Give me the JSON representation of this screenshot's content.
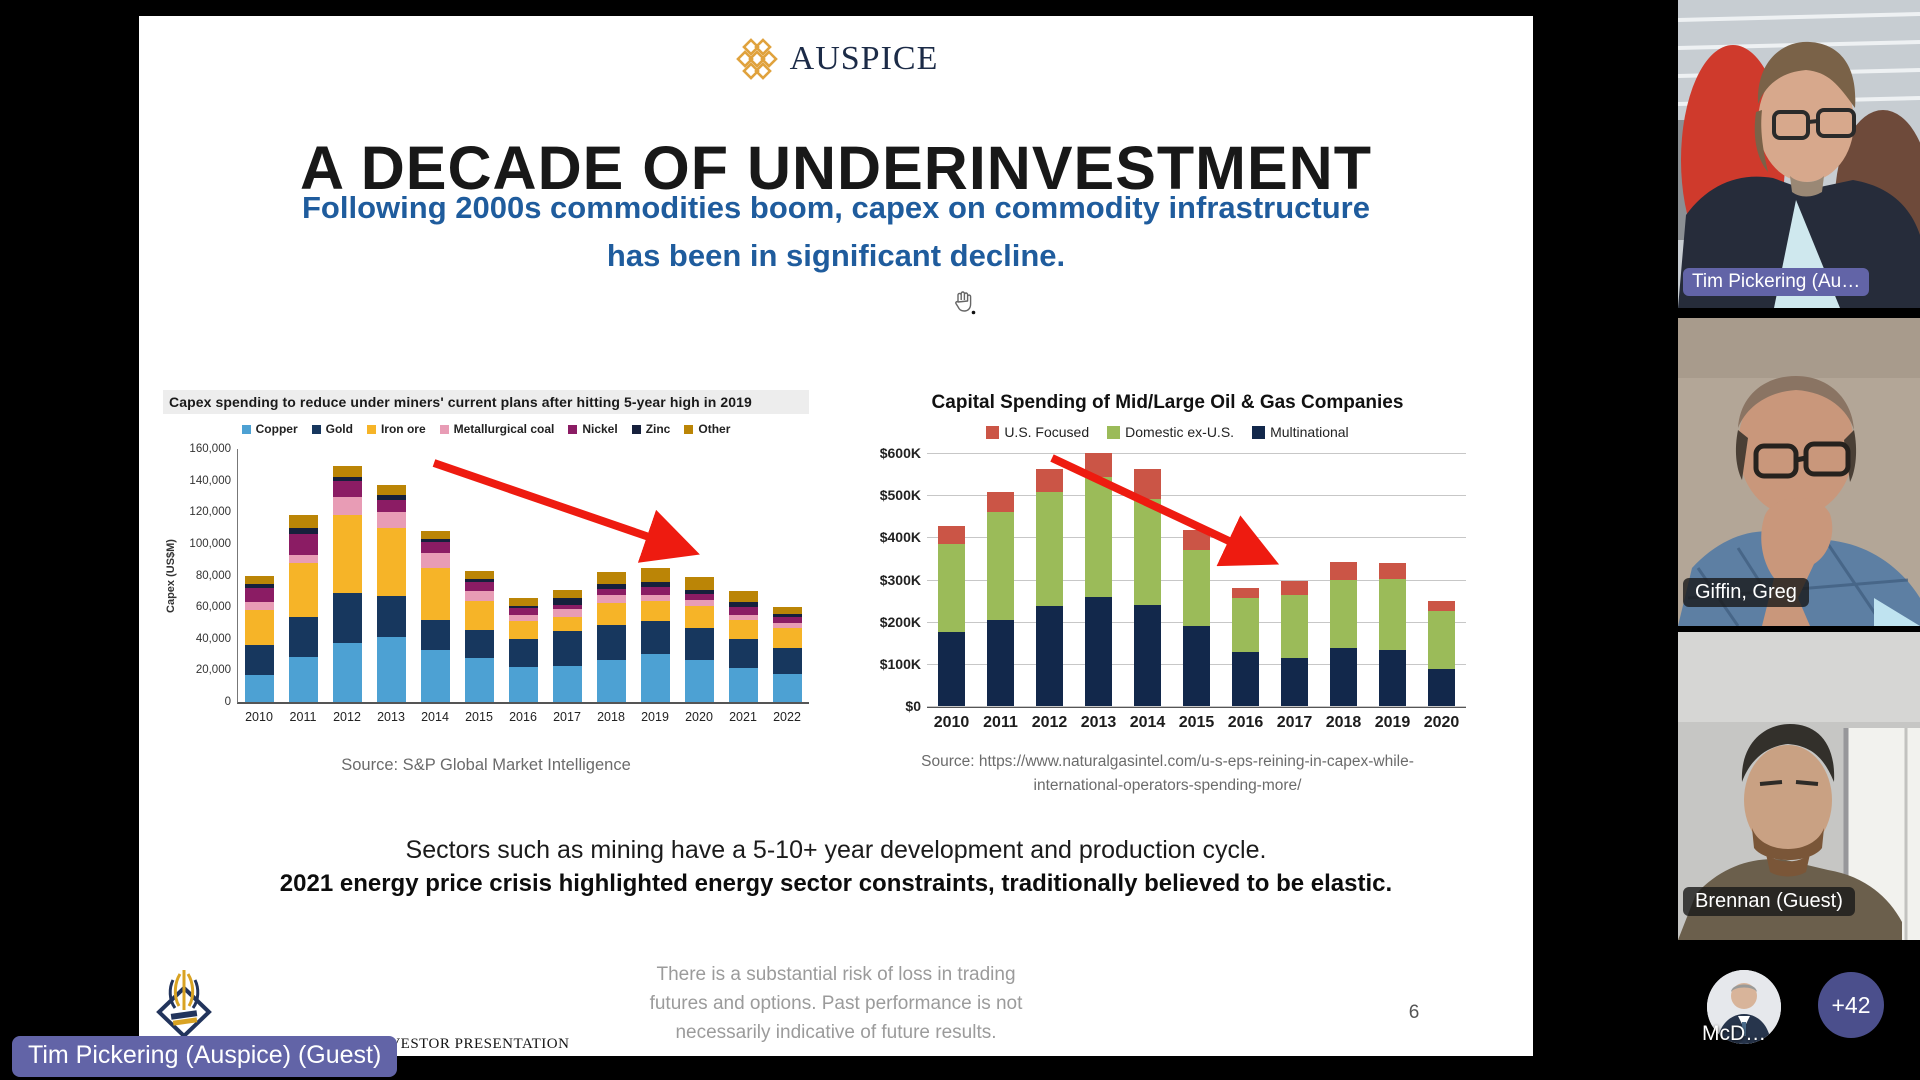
{
  "meeting": {
    "presenter_tag": "Tim Pickering (Auspice) (Guest)",
    "participants": [
      {
        "name": "Tim Pickering (Au…"
      },
      {
        "name": "Giffin, Greg"
      },
      {
        "name": "Brennan (Guest)"
      },
      {
        "name": "McD…"
      }
    ],
    "overflow_badge": "+42"
  },
  "slide": {
    "logo_text": "AUSPICE",
    "title": "A DECADE OF UNDERINVESTMENT",
    "subtitle_line1": "Following 2000s commodities boom, capex on commodity infrastructure",
    "subtitle_line2": "has been in significant decline.",
    "body_line1": "Sectors such as mining have a 5-10+ year development and production cycle.",
    "body_line2": "2021 energy price crisis highlighted energy sector constraints, traditionally believed to be elastic.",
    "left_source": "Source: S&P Global Market Intelligence",
    "right_source_line1": "Source: https://www.naturalgasintel.com/u-s-eps-reining-in-capex-while-",
    "right_source_line2": "international-operators-spending-more/",
    "footer_fragment": "x – INVESTOR PRESENTATION",
    "disclaimer_line1": "There is a substantial risk of loss in trading",
    "disclaimer_line2": "futures and options. Past performance is not",
    "disclaimer_line3": "necessarily indicative of future results.",
    "page_number": "6"
  },
  "colors": {
    "accent_tag_purple": "#6264a7",
    "overflow_badge_indigo": "#4b4f8c",
    "trend_arrow_red": "#ee1b10",
    "subtitle_blue": "#1f5c9d"
  },
  "chart_data": [
    {
      "type": "bar",
      "stacked": true,
      "title": "Capex spending to reduce under miners' current plans after hitting 5-year high in 2019",
      "ylabel": "Capex (US$M)",
      "ylim": [
        0,
        160000
      ],
      "y_ticks": [
        "160,000",
        "140,000",
        "120,000",
        "100,000",
        "80,000",
        "60,000",
        "40,000",
        "20,000",
        "0"
      ],
      "grid": false,
      "legend_position": "top",
      "annotation": "red downward trend arrow across 2014-2020",
      "categories": [
        "2010",
        "2011",
        "2012",
        "2013",
        "2014",
        "2015",
        "2016",
        "2017",
        "2018",
        "2019",
        "2020",
        "2021",
        "2022"
      ],
      "series": [
        {
          "name": "Copper",
          "color": "#4da1d3",
          "values": [
            17000,
            28500,
            37500,
            41000,
            33000,
            28000,
            22000,
            22500,
            26500,
            30500,
            26500,
            21500,
            18000
          ]
        },
        {
          "name": "Gold",
          "color": "#17375e",
          "values": [
            19000,
            25500,
            31500,
            26000,
            19000,
            17500,
            18000,
            22500,
            22500,
            21000,
            20000,
            18500,
            16000
          ]
        },
        {
          "name": "Iron ore",
          "color": "#f6b428",
          "values": [
            22000,
            34000,
            49500,
            43000,
            33000,
            18500,
            11500,
            9000,
            13500,
            12500,
            14500,
            12000,
            13000
          ]
        },
        {
          "name": "Metallurgical coal",
          "color": "#e89cb5",
          "values": [
            5000,
            5000,
            11000,
            10000,
            9000,
            6000,
            3500,
            5000,
            5500,
            4000,
            3500,
            3000,
            3000
          ]
        },
        {
          "name": "Nickel",
          "color": "#8b1c64",
          "values": [
            9000,
            13000,
            10000,
            8000,
            7000,
            6000,
            4500,
            2500,
            3500,
            5000,
            4000,
            5000,
            3500
          ]
        },
        {
          "name": "Zinc",
          "color": "#16203c",
          "values": [
            2500,
            4000,
            2500,
            3000,
            2000,
            2000,
            1500,
            4500,
            3000,
            3000,
            2500,
            3000,
            2000
          ]
        },
        {
          "name": "Other",
          "color": "#bb8506",
          "values": [
            5500,
            8000,
            7000,
            6500,
            5000,
            5000,
            4500,
            5000,
            7500,
            9000,
            8000,
            7000,
            4500
          ]
        }
      ]
    },
    {
      "type": "bar",
      "stacked": true,
      "title": "Capital Spending of Mid/Large Oil & Gas Companies",
      "ylabel": "",
      "ylim": [
        0,
        600000
      ],
      "y_ticks": [
        "$600K",
        "$500K",
        "$400K",
        "$300K",
        "$200K",
        "$100K",
        "$0"
      ],
      "grid": true,
      "legend_position": "top",
      "annotation": "red downward trend arrow across 2015-2020",
      "categories": [
        "2010",
        "2011",
        "2012",
        "2013",
        "2014",
        "2015",
        "2016",
        "2017",
        "2018",
        "2019",
        "2020"
      ],
      "series": [
        {
          "name": "Multinational",
          "color": "#12284b",
          "values": [
            175000,
            205000,
            237000,
            258000,
            240000,
            190000,
            127000,
            115000,
            137000,
            134000,
            88000
          ]
        },
        {
          "name": "Domestic ex-U.S.",
          "color": "#9bbb59",
          "values": [
            210000,
            255000,
            270000,
            285000,
            250000,
            180000,
            130000,
            148000,
            163000,
            168000,
            137000
          ]
        },
        {
          "name": "U.S. Focused",
          "color": "#cb5546",
          "values": [
            43000,
            48000,
            56000,
            57000,
            71000,
            47000,
            22000,
            34000,
            42000,
            38000,
            24000
          ]
        }
      ],
      "legend_order": [
        "U.S. Focused",
        "Domestic ex-U.S.",
        "Multinational"
      ]
    }
  ]
}
